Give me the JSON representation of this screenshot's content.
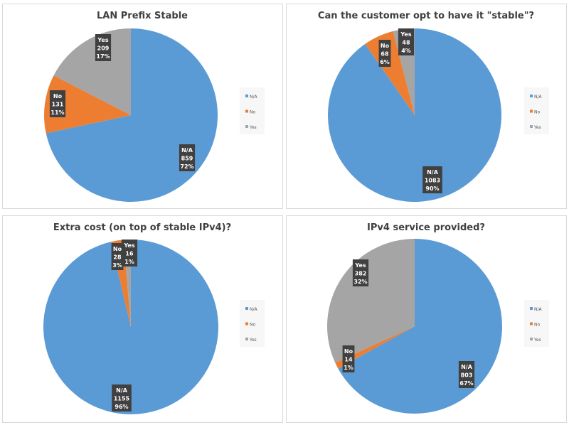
{
  "colors": {
    "N/A": "#5b9bd5",
    "No": "#ed7d31",
    "Yes": "#a5a5a5",
    "label_bg": "#404040"
  },
  "chart_data": [
    {
      "type": "pie",
      "title": "LAN Prefix Stable",
      "categories": [
        "N/A",
        "No",
        "Yes"
      ],
      "values": [
        859,
        131,
        209
      ],
      "percent_labels": [
        "72%",
        "11%",
        "17%"
      ],
      "legend": [
        "N/A",
        "No",
        "Yes"
      ],
      "legend_position": "right"
    },
    {
      "type": "pie",
      "title": "Can the customer opt to have it \"stable\"?",
      "categories": [
        "N/A",
        "No",
        "Yes"
      ],
      "values": [
        1083,
        68,
        48
      ],
      "percent_labels": [
        "90%",
        "6%",
        "4%"
      ],
      "legend": [
        "N/A",
        "No",
        "Yes"
      ],
      "legend_position": "right"
    },
    {
      "type": "pie",
      "title": "Extra cost (on top of stable IPv4)?",
      "categories": [
        "N/A",
        "No",
        "Yes"
      ],
      "values": [
        1155,
        28,
        16
      ],
      "percent_labels": [
        "96%",
        "3%",
        "1%"
      ],
      "legend": [
        "N/A",
        "No",
        "Yes"
      ],
      "legend_position": "right"
    },
    {
      "type": "pie",
      "title": "IPv4 service provided?",
      "categories": [
        "N/A",
        "No",
        "Yes"
      ],
      "values": [
        803,
        14,
        382
      ],
      "percent_labels": [
        "67%",
        "1%",
        "32%"
      ],
      "legend": [
        "N/A",
        "No",
        "Yes"
      ],
      "legend_position": "right"
    }
  ]
}
